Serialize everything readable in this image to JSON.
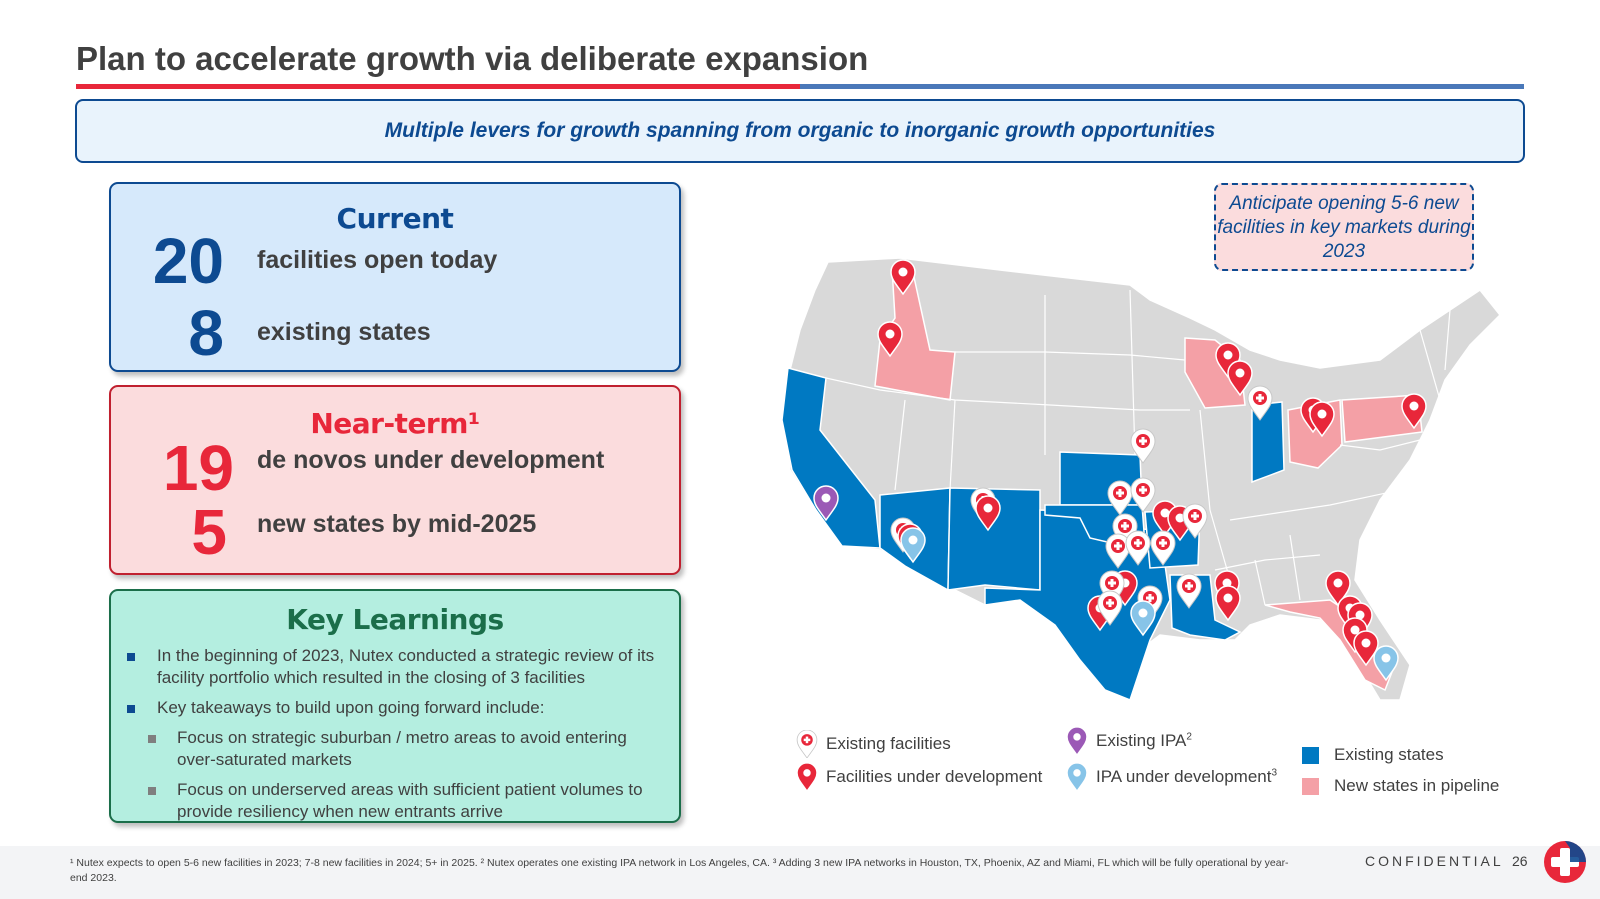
{
  "title": "Plan to accelerate growth via deliberate expansion",
  "banner": "Multiple levers for growth spanning from organic to inorganic growth opportunities",
  "current": {
    "heading": "Current",
    "stats": [
      {
        "number": "20",
        "label": "facilities open today"
      },
      {
        "number": "8",
        "label": "existing states"
      }
    ]
  },
  "near_term": {
    "heading": "Near-term¹",
    "stats": [
      {
        "number": "19",
        "label": "de novos under development"
      },
      {
        "number": "5",
        "label": "new states by mid-2025"
      }
    ]
  },
  "key_learnings": {
    "heading": "Key Learnings",
    "bullets": [
      "In the beginning of 2023, Nutex conducted a strategic review of its facility portfolio which resulted in the closing of 3 facilities",
      "Key takeaways to build upon going forward include:"
    ],
    "sub_bullets": [
      "Focus on strategic suburban / metro areas to avoid entering over-saturated markets",
      "Focus on underserved areas with sufficient patient volumes to provide resiliency when new entrants arrive"
    ]
  },
  "callout": "Anticipate opening 5-6 new facilities in key markets during 2023",
  "legend": {
    "existing_facilities": "Existing facilities",
    "facilities_under_development": "Facilities under development",
    "existing_ipa": "Existing IPA",
    "existing_ipa_sup": "2",
    "ipa_under_development": "IPA under development",
    "ipa_under_development_sup": "3",
    "existing_states": "Existing states",
    "new_states_in_pipeline": "New states in pipeline"
  },
  "colors": {
    "existing_state": "#0079c2",
    "pipeline_state": "#f4a0a6",
    "other_state": "#d9d9d9",
    "pin_red": "#e8273a",
    "pin_purple": "#9b59b6",
    "pin_light_blue": "#87c4e8",
    "navy": "#0d4a91"
  },
  "footnote": "¹ Nutex expects to open 5-6 new facilities in 2023; 7-8 new facilities in 2024; 5+ in 2025. ² Nutex operates one existing IPA network in Los Angeles, CA. ³ Adding 3 new IPA networks in Houston, TX, Phoenix, AZ and Miami, FL which will be fully operational by year-end 2023.",
  "confidential": "CONFIDENTIAL",
  "page_number": "26"
}
